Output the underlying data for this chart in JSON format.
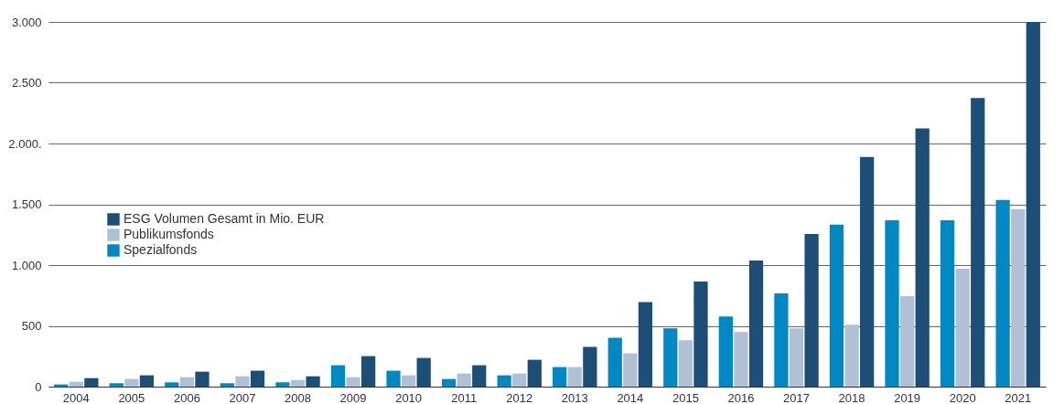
{
  "chart_data": {
    "type": "bar",
    "categories": [
      "2004",
      "2005",
      "2006",
      "2007",
      "2008",
      "2009",
      "2010",
      "2011",
      "2012",
      "2013",
      "2014",
      "2015",
      "2016",
      "2017",
      "2018",
      "2019",
      "2020",
      "2021"
    ],
    "series": [
      {
        "name": "Spezialfonds",
        "color": "#0088c4",
        "values": [
          18,
          28,
          35,
          28,
          35,
          176,
          131,
          63,
          93,
          161,
          402,
          480,
          578,
          766,
          1332,
          1369,
          1369,
          1535
        ]
      },
      {
        "name": "Publikumsfonds",
        "color": "#b0c1d6",
        "values": [
          40,
          63,
          78,
          85,
          55,
          78,
          93,
          108,
          108,
          161,
          274,
          382,
          450,
          480,
          510,
          744,
          970,
          1460
        ]
      },
      {
        "name": "ESG Volumen Gesamt in Mio. EUR",
        "color": "#1d4e77",
        "values": [
          70,
          93,
          123,
          131,
          85,
          251,
          236,
          176,
          221,
          327,
          696,
          864,
          1038,
          1256,
          1889,
          2125,
          2375,
          3000
        ]
      }
    ],
    "ylim": [
      0,
      3000
    ],
    "yticks": [
      0,
      500,
      {
        "value": 1000,
        "label": "1.000"
      },
      {
        "value": 1500,
        "label": "1.500"
      },
      {
        "value": 2000,
        "label": "2.000."
      },
      {
        "value": 2500,
        "label": "2.500"
      },
      {
        "value": 3000,
        "label": "3.000"
      }
    ],
    "grid": "y",
    "legend": "left"
  }
}
